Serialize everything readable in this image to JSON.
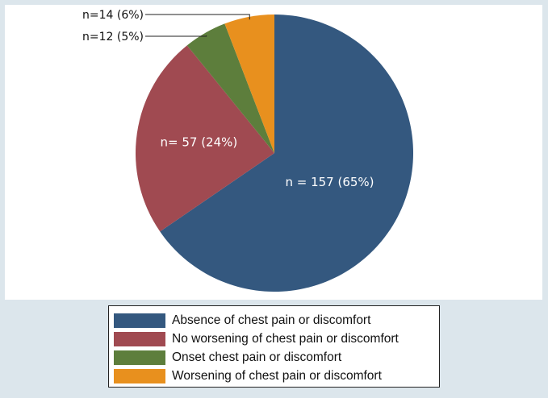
{
  "chart_data": {
    "type": "pie",
    "categories": [
      "Absence of chest pain or discomfort",
      "No worsening of chest pain or discomfort",
      "Onset chest pain or discomfort",
      "Worsening of chest pain or discomfort"
    ],
    "values": [
      157,
      57,
      12,
      14
    ],
    "percentages": [
      65,
      24,
      5,
      6
    ],
    "slice_labels": [
      "n = 157 (65%)",
      "n= 57 (24%)",
      "n=12 (5%)",
      "n=14 (6%)"
    ],
    "colors": [
      "#34587f",
      "#a04a51",
      "#5d7e3c",
      "#e8901e"
    ],
    "legend_position": "bottom"
  }
}
